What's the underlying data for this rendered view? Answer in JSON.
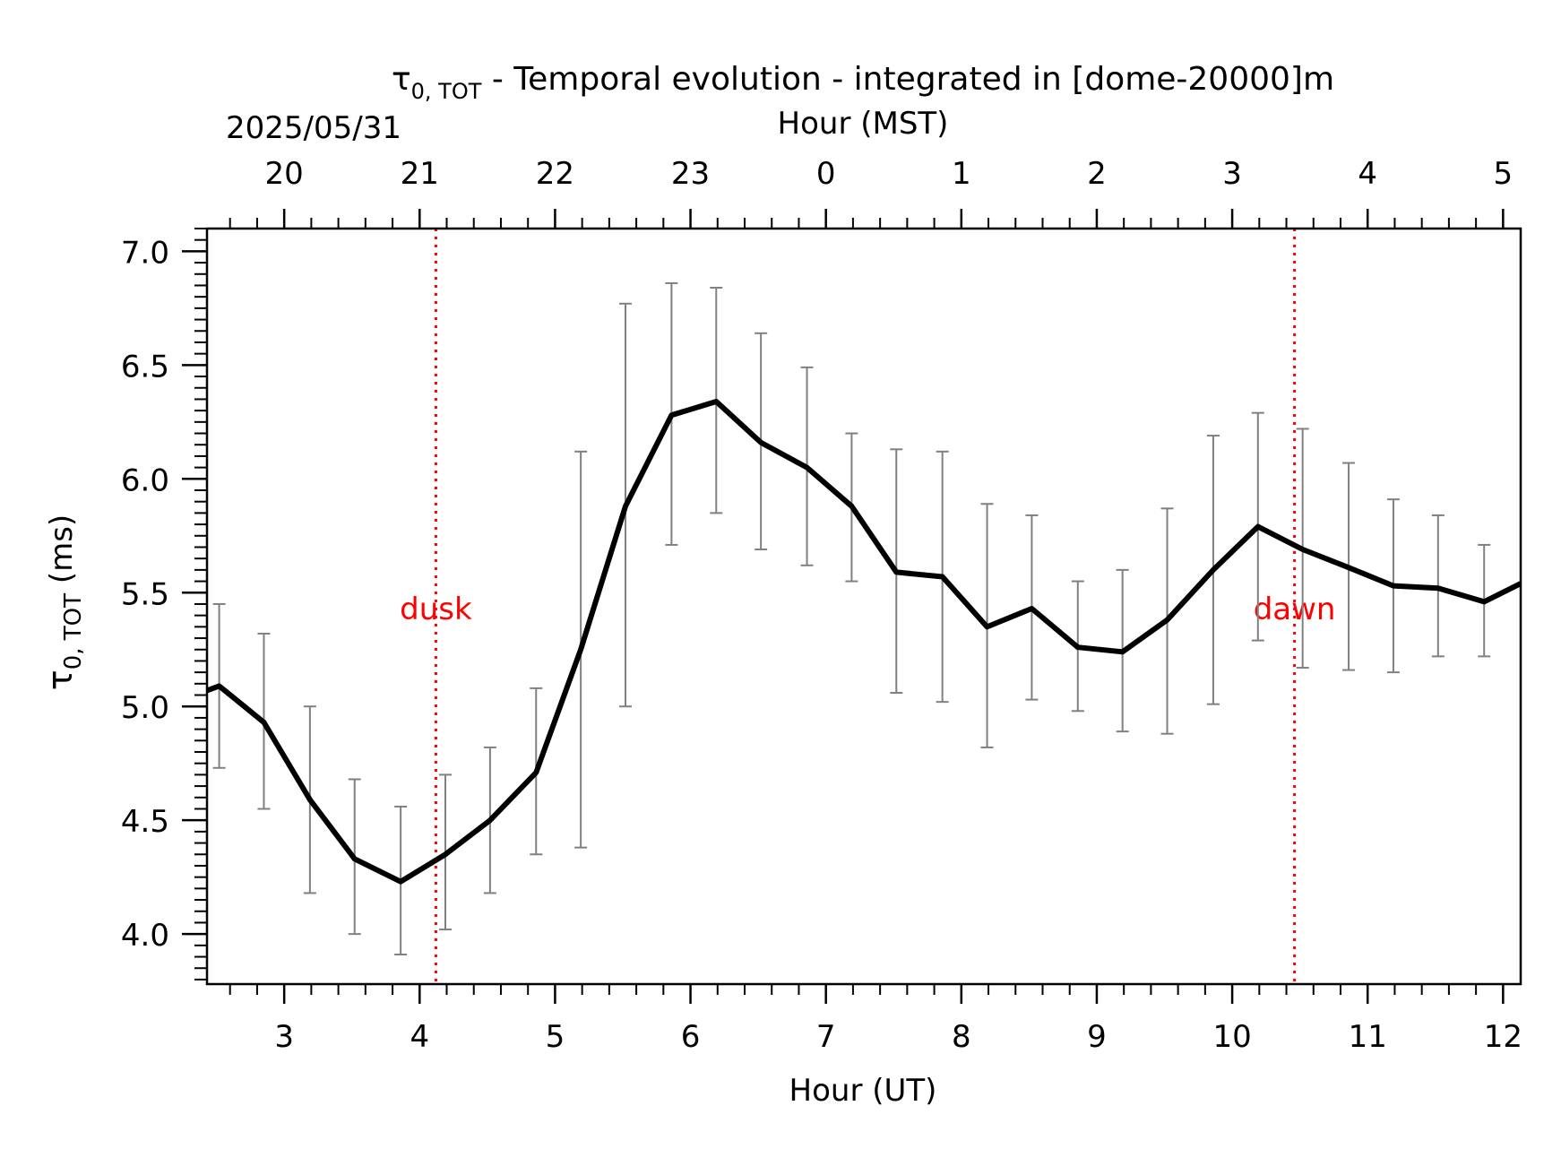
{
  "chart_data": {
    "type": "line",
    "title_symbol": "τ",
    "title_subscript": "0, TOT",
    "title_rest": " - Temporal evolution - integrated in [dome-20000]m",
    "date_label": "2025/05/31",
    "xlabel": "Hour (UT)",
    "top_xlabel": "Hour (MST)",
    "ylabel_symbol": "τ",
    "ylabel_subscript": "0, TOT",
    "ylabel_rest": " (ms)",
    "xlim": [
      2.43,
      12.13
    ],
    "ylim": [
      3.78,
      7.1
    ],
    "x_ticks": [
      3,
      4,
      5,
      6,
      7,
      8,
      9,
      10,
      11,
      12
    ],
    "x_tick_labels": [
      "3",
      "4",
      "5",
      "6",
      "7",
      "8",
      "9",
      "10",
      "11",
      "12"
    ],
    "top_ticks": [
      3,
      4,
      5,
      6,
      7,
      8,
      9,
      10,
      11,
      12
    ],
    "top_tick_labels": [
      "20",
      "21",
      "22",
      "23",
      "0",
      "1",
      "2",
      "3",
      "4",
      "5"
    ],
    "y_ticks": [
      4.0,
      4.5,
      5.0,
      5.5,
      6.0,
      6.5,
      7.0
    ],
    "y_tick_labels": [
      "4.0",
      "4.5",
      "5.0",
      "5.5",
      "6.0",
      "6.5",
      "7.0"
    ],
    "grid": false,
    "line_color": "#000000",
    "errorbar_color": "#808080",
    "event_color": "#ff0000",
    "series": [
      {
        "x": [
          2.43,
          2.52,
          2.85,
          3.19,
          3.52,
          3.86,
          4.19,
          4.52,
          4.86,
          5.19,
          5.52,
          5.86,
          6.19,
          6.52,
          6.86,
          7.19,
          7.52,
          7.86,
          8.19,
          8.52,
          8.86,
          9.19,
          9.52,
          9.86,
          10.19,
          10.52,
          10.86,
          11.19,
          11.52,
          11.86,
          12.13
        ],
        "y": [
          5.07,
          5.09,
          4.93,
          4.59,
          4.33,
          4.23,
          4.35,
          4.5,
          4.71,
          5.25,
          5.88,
          6.28,
          6.34,
          6.16,
          6.05,
          5.88,
          5.59,
          5.57,
          5.35,
          5.43,
          5.26,
          5.24,
          5.38,
          5.6,
          5.79,
          5.69,
          5.61,
          5.53,
          5.52,
          5.46,
          5.54
        ]
      }
    ],
    "error_bars": {
      "x": [
        2.52,
        2.85,
        3.19,
        3.52,
        3.86,
        4.19,
        4.52,
        4.86,
        5.19,
        5.52,
        5.86,
        6.19,
        6.52,
        6.86,
        7.19,
        7.52,
        7.86,
        8.19,
        8.52,
        8.86,
        9.19,
        9.52,
        9.86,
        10.19,
        10.52,
        10.86,
        11.19,
        11.52,
        11.86
      ],
      "low": [
        4.73,
        4.55,
        4.18,
        4.0,
        3.91,
        4.02,
        4.18,
        4.35,
        4.38,
        5.0,
        5.71,
        5.85,
        5.69,
        5.62,
        5.55,
        5.06,
        5.02,
        4.82,
        5.03,
        4.98,
        4.89,
        4.88,
        5.01,
        5.29,
        5.17,
        5.16,
        5.15,
        5.22,
        5.22
      ],
      "high": [
        5.45,
        5.32,
        5.0,
        4.68,
        4.56,
        4.7,
        4.82,
        5.08,
        6.12,
        6.77,
        6.86,
        6.84,
        6.64,
        6.49,
        6.2,
        6.13,
        6.12,
        5.89,
        5.84,
        5.55,
        5.6,
        5.87,
        6.19,
        6.29,
        6.22,
        6.07,
        5.91,
        5.84,
        5.71
      ]
    },
    "events": [
      {
        "label": "dusk",
        "x": 4.12,
        "label_y": 5.43
      },
      {
        "label": "dawn",
        "x": 10.46,
        "label_y": 5.43
      }
    ]
  }
}
